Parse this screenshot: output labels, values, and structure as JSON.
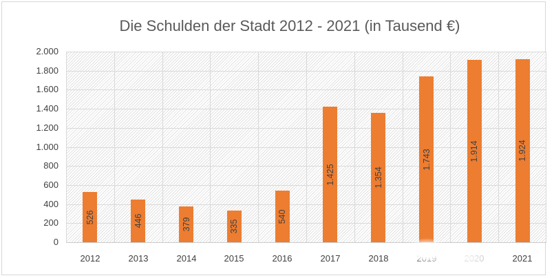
{
  "colors": {
    "bar": "#ED7D31",
    "title_text": "#595959",
    "axis_text": "#404040",
    "bar_label_text": "#404040",
    "gridline": "#D9D9D9",
    "chart_border": "#D6D6D6",
    "plot_background": "#FFFFFF"
  },
  "chart_data": {
    "type": "bar",
    "title": "Die Schulden der Stadt 2012 - 2021 (in Tausend €)",
    "categories": [
      "2012",
      "2013",
      "2014",
      "2015",
      "2016",
      "2017",
      "2018",
      "2019",
      "2020",
      "2021"
    ],
    "values": [
      526,
      446,
      379,
      335,
      540,
      1425,
      1354,
      1743,
      1914,
      1924
    ],
    "bar_labels": [
      "526",
      "446",
      "379",
      "335",
      "540",
      "1.425",
      "1.354",
      "1.743",
      "1.914",
      "1.924"
    ],
    "bar_label_rotation": "vertical, reads bottom-to-top, centered inside bar",
    "xlabel": "",
    "ylabel": "",
    "ylim": [
      0,
      2000
    ],
    "ytick_step": 200,
    "ytick_labels": [
      "0",
      "200",
      "400",
      "600",
      "800",
      "1.000",
      "1.200",
      "1.400",
      "1.600",
      "1.800",
      "2.000"
    ],
    "grid": "horizontal and vertical light gray gridlines",
    "legend": "none",
    "bar_color": "#ED7D31",
    "plot_area_pattern": "fine light diagonal hatch on white"
  },
  "artifacts": {
    "smudge_note": "white watermark smudge over baseline near 2019/2020 labels"
  }
}
